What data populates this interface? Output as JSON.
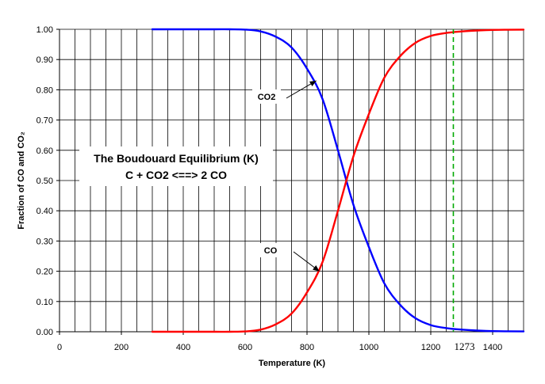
{
  "chart_data": {
    "type": "line",
    "title_lines": [
      "The Boudouard Equilibrium (K)",
      "C + CO2 <==> 2 CO"
    ],
    "xlabel": "Temperature (K)",
    "ylabel": "Fraction of CO and CO₂",
    "xlim": [
      0,
      1500
    ],
    "ylim": [
      0,
      1
    ],
    "xticks": [
      0,
      200,
      400,
      600,
      800,
      1000,
      1200,
      1400
    ],
    "x_minor_grid_step": 50,
    "yticks": [
      "0.00",
      "0.10",
      "0.20",
      "0.30",
      "0.40",
      "0.50",
      "0.60",
      "0.70",
      "0.80",
      "0.90",
      "1.00"
    ],
    "grid": true,
    "series": [
      {
        "name": "CO2",
        "color": "#0000FF",
        "x": [
          300,
          400,
          500,
          550,
          600,
          650,
          700,
          750,
          800,
          850,
          900,
          950,
          1000,
          1050,
          1100,
          1150,
          1200,
          1250,
          1300,
          1350,
          1400,
          1500
        ],
        "y": [
          1.0,
          1.0,
          1.0,
          1.0,
          0.999,
          0.993,
          0.975,
          0.94,
          0.87,
          0.77,
          0.6,
          0.42,
          0.28,
          0.16,
          0.09,
          0.045,
          0.022,
          0.012,
          0.007,
          0.004,
          0.002,
          0.001
        ]
      },
      {
        "name": "CO",
        "color": "#FF0000",
        "x": [
          300,
          400,
          500,
          550,
          600,
          650,
          700,
          750,
          800,
          850,
          900,
          950,
          1000,
          1050,
          1100,
          1150,
          1200,
          1250,
          1300,
          1350,
          1400,
          1500
        ],
        "y": [
          0.0,
          0.0,
          0.0,
          0.0,
          0.001,
          0.007,
          0.025,
          0.06,
          0.13,
          0.23,
          0.4,
          0.58,
          0.72,
          0.84,
          0.91,
          0.955,
          0.978,
          0.988,
          0.993,
          0.996,
          0.998,
          0.999
        ]
      }
    ],
    "annotations": [
      {
        "text": "CO2",
        "arrow_to_x": 830,
        "arrow_to_y": 0.83
      },
      {
        "text": "CO",
        "arrow_to_x": 840,
        "arrow_to_y": 0.2
      }
    ],
    "marker_line": {
      "x": 1273,
      "label": "1273",
      "color": "#00AA00",
      "style": "dashed"
    }
  }
}
